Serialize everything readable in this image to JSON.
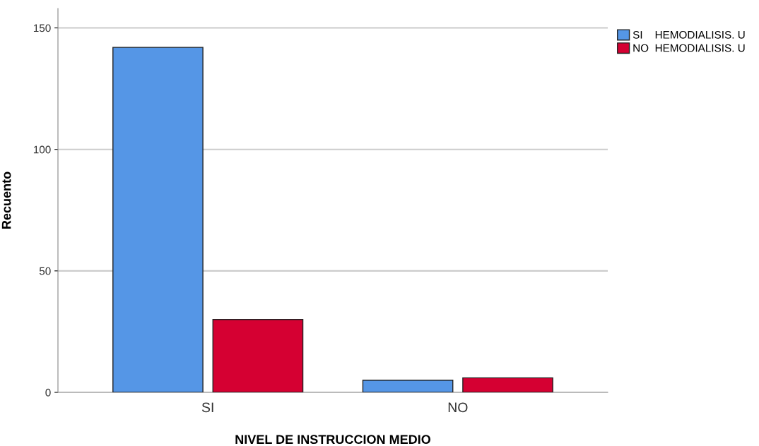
{
  "chart_data": {
    "type": "bar",
    "xlabel": "NIVEL DE INSTRUCCION MEDIO",
    "ylabel": "Recuento",
    "categories": [
      "SI",
      "NO"
    ],
    "series": [
      {
        "name": "SI    HEMODIALISIS. U",
        "color": "#5596e6",
        "values": [
          142,
          5
        ]
      },
      {
        "name": "NO  HEMODIALISIS. U",
        "color": "#d50032",
        "values": [
          30,
          6
        ]
      }
    ],
    "ylim": [
      0,
      158
    ],
    "yticks": [
      0,
      50,
      100,
      150
    ],
    "grid": "y",
    "legend": "top right"
  }
}
